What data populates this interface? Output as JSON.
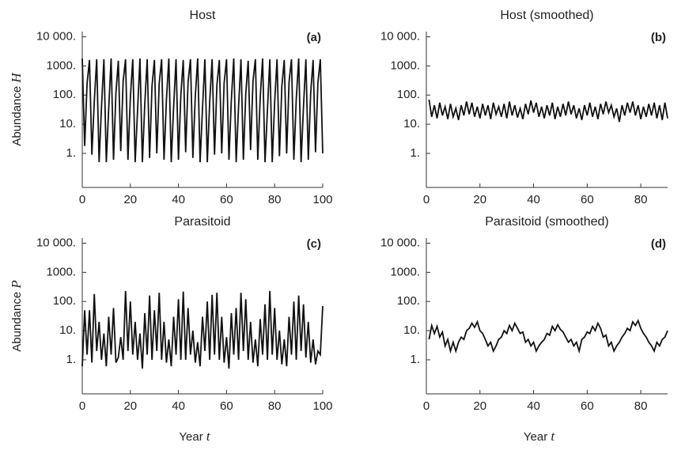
{
  "chart_data": [
    {
      "type": "line",
      "title": "Host",
      "panel_label": "(a)",
      "ylabel": "Abundance",
      "ylabel_var": "H",
      "log_y": true,
      "color": "#111111",
      "xlim": [
        0,
        100
      ],
      "xticks": [
        0,
        20,
        40,
        60,
        80,
        100
      ],
      "ylim": [
        0.068,
        15000
      ],
      "yticks": [
        {
          "value": 10000,
          "label": "10 000."
        },
        {
          "value": 1000,
          "label": "1000."
        },
        {
          "value": 100,
          "label": "100."
        },
        {
          "value": 10,
          "label": "10."
        },
        {
          "value": 1,
          "label": "1."
        }
      ],
      "x": [
        0,
        1,
        2,
        3,
        4,
        5,
        6,
        7,
        8,
        9,
        10,
        11,
        12,
        13,
        14,
        15,
        16,
        17,
        18,
        19,
        20,
        21,
        22,
        23,
        24,
        25,
        26,
        27,
        28,
        29,
        30,
        31,
        32,
        33,
        34,
        35,
        36,
        37,
        38,
        39,
        40,
        41,
        42,
        43,
        44,
        45,
        46,
        47,
        48,
        49,
        50,
        51,
        52,
        53,
        54,
        55,
        56,
        57,
        58,
        59,
        60,
        61,
        62,
        63,
        64,
        65,
        66,
        67,
        68,
        69,
        70,
        71,
        72,
        73,
        74,
        75,
        76,
        77,
        78,
        79,
        80,
        81,
        82,
        83,
        84,
        85,
        86,
        87,
        88,
        89,
        90,
        91,
        92,
        93,
        94,
        95,
        96,
        97,
        98,
        99,
        100
      ],
      "values": [
        1800,
        1.8,
        250,
        1600,
        0.9,
        60,
        1700,
        0.5,
        40,
        1700,
        0.5,
        35,
        1800,
        0.6,
        120,
        1500,
        1.2,
        300,
        1700,
        0.6,
        80,
        1700,
        0.5,
        30,
        1800,
        0.5,
        50,
        1700,
        0.7,
        200,
        1600,
        1.0,
        250,
        1700,
        0.6,
        70,
        1800,
        0.5,
        40,
        1700,
        0.6,
        100,
        1600,
        1.1,
        280,
        1700,
        0.7,
        90,
        1800,
        0.5,
        35,
        1700,
        0.5,
        60,
        1700,
        0.9,
        220,
        1600,
        1.0,
        260,
        1700,
        0.6,
        70,
        1800,
        0.5,
        40,
        1700,
        0.6,
        110,
        1500,
        1.3,
        300,
        1700,
        0.6,
        80,
        1800,
        0.5,
        30,
        1700,
        0.5,
        55,
        1700,
        0.8,
        200,
        1600,
        1.0,
        280,
        1700,
        0.6,
        75,
        1800,
        0.5,
        40,
        1700,
        0.6,
        120,
        1600,
        1.1,
        270,
        1700,
        1.0
      ]
    },
    {
      "type": "line",
      "title": "Host (smoothed)",
      "panel_label": "(b)",
      "log_y": true,
      "color": "#111111",
      "xlim": [
        0,
        90
      ],
      "xticks": [
        0,
        20,
        40,
        60,
        80
      ],
      "ylim": [
        0.068,
        15000
      ],
      "yticks": [
        {
          "value": 10000,
          "label": "10 000."
        },
        {
          "value": 1000,
          "label": "1000."
        },
        {
          "value": 100,
          "label": "100."
        },
        {
          "value": 10,
          "label": "10."
        },
        {
          "value": 1,
          "label": "1."
        }
      ],
      "x": [
        1,
        2,
        3,
        4,
        5,
        6,
        7,
        8,
        9,
        10,
        11,
        12,
        13,
        14,
        15,
        16,
        17,
        18,
        19,
        20,
        21,
        22,
        23,
        24,
        25,
        26,
        27,
        28,
        29,
        30,
        31,
        32,
        33,
        34,
        35,
        36,
        37,
        38,
        39,
        40,
        41,
        42,
        43,
        44,
        45,
        46,
        47,
        48,
        49,
        50,
        51,
        52,
        53,
        54,
        55,
        56,
        57,
        58,
        59,
        60,
        61,
        62,
        63,
        64,
        65,
        66,
        67,
        68,
        69,
        70,
        71,
        72,
        73,
        74,
        75,
        76,
        77,
        78,
        79,
        80,
        81,
        82,
        83,
        84,
        85,
        86,
        87,
        88,
        89,
        90
      ],
      "values": [
        70,
        18,
        45,
        16,
        55,
        20,
        40,
        15,
        50,
        18,
        35,
        14,
        45,
        20,
        60,
        22,
        55,
        18,
        40,
        16,
        50,
        20,
        45,
        15,
        55,
        22,
        40,
        18,
        50,
        16,
        60,
        20,
        45,
        17,
        35,
        15,
        50,
        22,
        65,
        25,
        55,
        18,
        40,
        16,
        45,
        20,
        55,
        15,
        40,
        18,
        50,
        20,
        60,
        22,
        45,
        16,
        35,
        14,
        45,
        20,
        55,
        18,
        40,
        15,
        50,
        22,
        60,
        25,
        45,
        18,
        35,
        12,
        45,
        20,
        55,
        25,
        60,
        20,
        45,
        15,
        40,
        18,
        50,
        20,
        55,
        16,
        45,
        14,
        55,
        16
      ]
    },
    {
      "type": "line",
      "title": "Parasitoid",
      "panel_label": "(c)",
      "ylabel": "Abundance",
      "ylabel_var": "P",
      "xlabel": "Year",
      "xlabel_var": "t",
      "log_y": true,
      "color": "#111111",
      "xlim": [
        0,
        100
      ],
      "xticks": [
        0,
        20,
        40,
        60,
        80,
        100
      ],
      "ylim": [
        0.068,
        15000
      ],
      "yticks": [
        {
          "value": 10000,
          "label": "10 000."
        },
        {
          "value": 1000,
          "label": "1000."
        },
        {
          "value": 100,
          "label": "100."
        },
        {
          "value": 10,
          "label": "10."
        },
        {
          "value": 1,
          "label": "1."
        }
      ],
      "x": [
        0,
        1,
        2,
        3,
        4,
        5,
        6,
        7,
        8,
        9,
        10,
        11,
        12,
        13,
        14,
        15,
        16,
        17,
        18,
        19,
        20,
        21,
        22,
        23,
        24,
        25,
        26,
        27,
        28,
        29,
        30,
        31,
        32,
        33,
        34,
        35,
        36,
        37,
        38,
        39,
        40,
        41,
        42,
        43,
        44,
        45,
        46,
        47,
        48,
        49,
        50,
        51,
        52,
        53,
        54,
        55,
        56,
        57,
        58,
        59,
        60,
        61,
        62,
        63,
        64,
        65,
        66,
        67,
        68,
        69,
        70,
        71,
        72,
        73,
        74,
        75,
        76,
        77,
        78,
        79,
        80,
        81,
        82,
        83,
        84,
        85,
        86,
        87,
        88,
        89,
        90,
        91,
        92,
        93,
        94,
        95,
        96,
        97,
        98,
        99,
        100
      ],
      "values": [
        0.6,
        50,
        1.5,
        50,
        0.8,
        180,
        2,
        20,
        1,
        8,
        0.6,
        30,
        1.5,
        60,
        0.8,
        1.2,
        6,
        1,
        230,
        2,
        100,
        1.5,
        20,
        1,
        8,
        0.5,
        40,
        1.5,
        160,
        1,
        50,
        2,
        200,
        1,
        20,
        0.8,
        5,
        0.6,
        30,
        1.5,
        120,
        1,
        220,
        1,
        60,
        1.5,
        10,
        0.8,
        4,
        0.6,
        30,
        2,
        100,
        1,
        170,
        1.5,
        200,
        1,
        30,
        0.8,
        6,
        0.5,
        40,
        1.5,
        60,
        1,
        200,
        2,
        120,
        1,
        20,
        0.8,
        5,
        0.6,
        25,
        1.5,
        80,
        1,
        230,
        1.5,
        60,
        1,
        10,
        0.7,
        5,
        0.6,
        30,
        1.5,
        100,
        1,
        160,
        2,
        80,
        1.2,
        20,
        0.8,
        5,
        0.7,
        2,
        1.5,
        70
      ]
    },
    {
      "type": "line",
      "title": "Parasitoid (smoothed)",
      "panel_label": "(d)",
      "xlabel": "Year",
      "xlabel_var": "t",
      "log_y": true,
      "color": "#111111",
      "xlim": [
        0,
        90
      ],
      "xticks": [
        0,
        20,
        40,
        60,
        80
      ],
      "ylim": [
        0.068,
        15000
      ],
      "yticks": [
        {
          "value": 10000,
          "label": "10 000."
        },
        {
          "value": 1000,
          "label": "1000."
        },
        {
          "value": 100,
          "label": "100."
        },
        {
          "value": 10,
          "label": "10."
        },
        {
          "value": 1,
          "label": "1."
        }
      ],
      "x": [
        1,
        2,
        3,
        4,
        5,
        6,
        7,
        8,
        9,
        10,
        11,
        12,
        13,
        14,
        15,
        16,
        17,
        18,
        19,
        20,
        21,
        22,
        23,
        24,
        25,
        26,
        27,
        28,
        29,
        30,
        31,
        32,
        33,
        34,
        35,
        36,
        37,
        38,
        39,
        40,
        41,
        42,
        43,
        44,
        45,
        46,
        47,
        48,
        49,
        50,
        51,
        52,
        53,
        54,
        55,
        56,
        57,
        58,
        59,
        60,
        61,
        62,
        63,
        64,
        65,
        66,
        67,
        68,
        69,
        70,
        71,
        72,
        73,
        74,
        75,
        76,
        77,
        78,
        79,
        80,
        81,
        82,
        83,
        84,
        85,
        86,
        87,
        88,
        89,
        90
      ],
      "values": [
        5,
        15,
        8,
        14,
        6,
        9,
        3,
        5,
        2,
        4,
        2,
        4,
        6,
        5,
        10,
        12,
        18,
        13,
        20,
        10,
        8,
        5,
        3,
        4,
        2,
        3,
        5,
        6,
        10,
        8,
        15,
        10,
        18,
        12,
        8,
        9,
        4,
        5,
        3,
        4,
        2,
        3,
        4,
        5,
        8,
        7,
        14,
        10,
        16,
        11,
        9,
        6,
        4,
        5,
        3,
        4,
        2,
        5,
        6,
        9,
        8,
        14,
        10,
        18,
        12,
        6,
        7,
        3,
        4,
        2,
        3,
        4,
        6,
        8,
        12,
        10,
        20,
        15,
        22,
        12,
        8,
        6,
        4,
        3,
        2,
        4,
        3,
        5,
        6,
        10
      ]
    }
  ]
}
